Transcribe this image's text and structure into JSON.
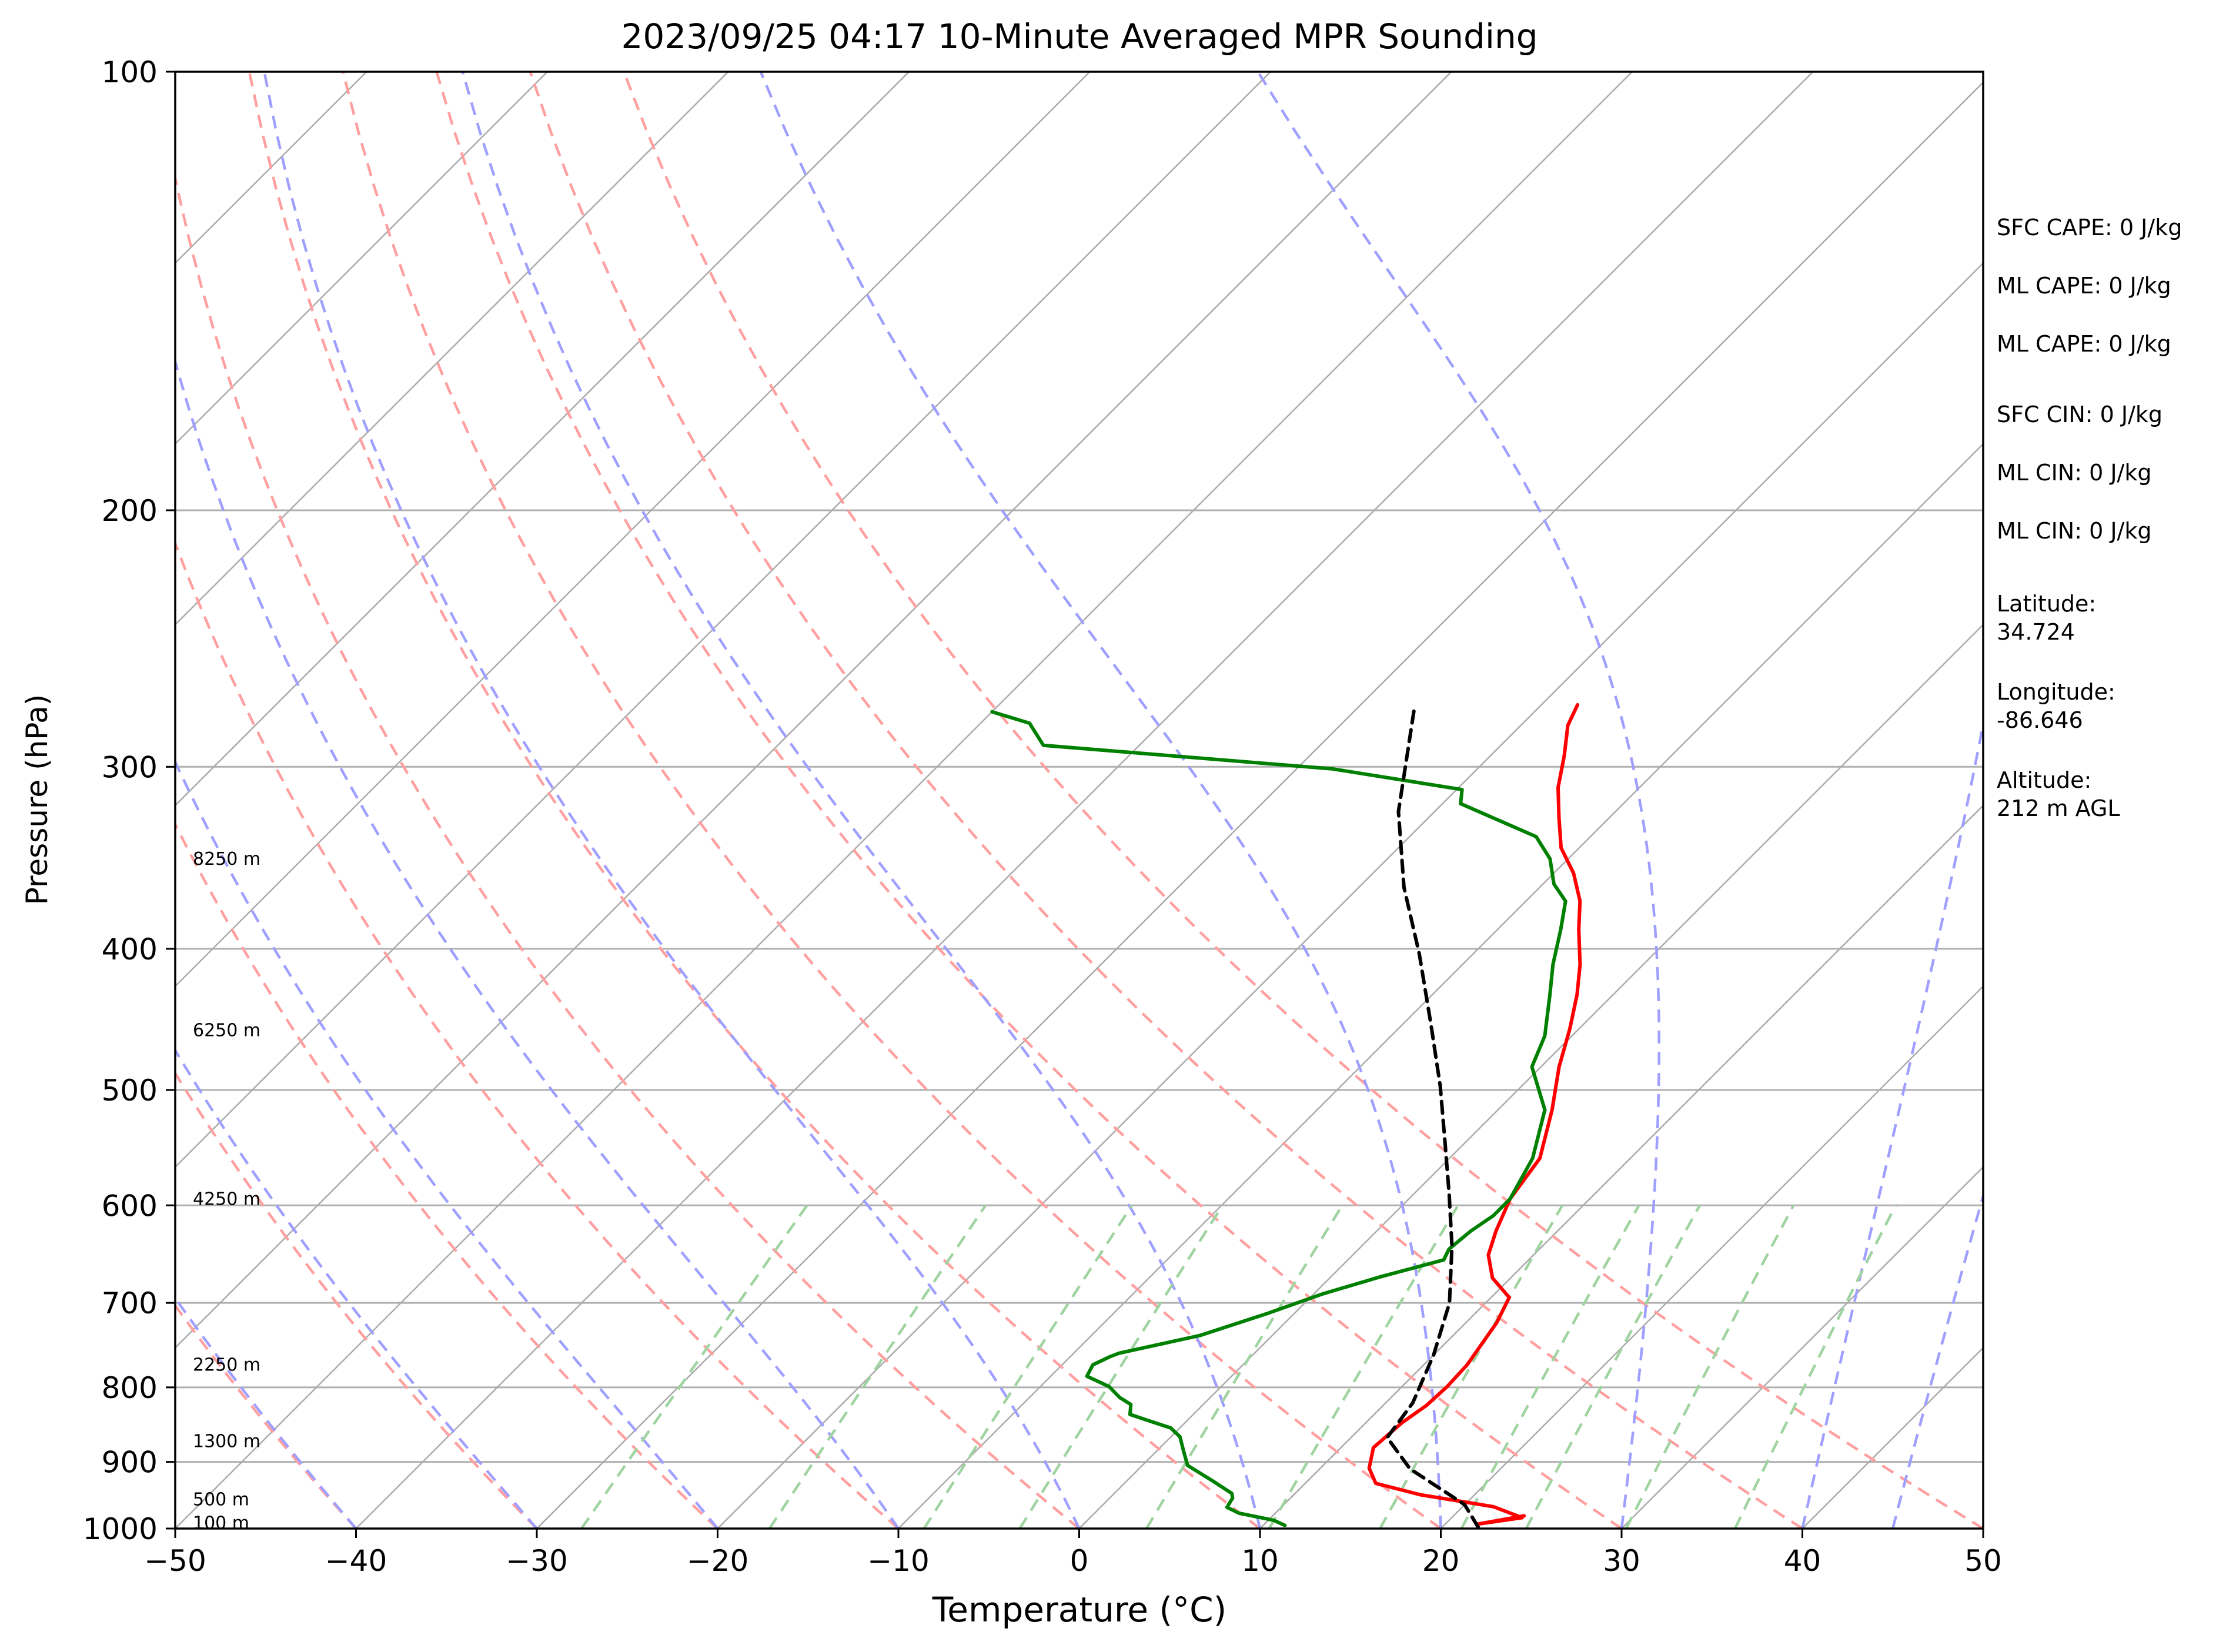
{
  "chart_data": {
    "type": "skew-t",
    "title": "2023/09/25 04:17 10-Minute Averaged MPR Sounding",
    "xlabel": "Temperature (°C)",
    "ylabel": "Pressure (hPa)",
    "xlim": [
      -50,
      50
    ],
    "ylim": [
      1000,
      100
    ],
    "yscale": "log",
    "grid": true,
    "x_ticks": [
      "−50",
      "−40",
      "−30",
      "−20",
      "−10",
      "0",
      "10",
      "20",
      "30",
      "40",
      "50"
    ],
    "x_tick_values": [
      -50,
      -40,
      -30,
      -20,
      -10,
      0,
      10,
      20,
      30,
      40,
      50
    ],
    "y_ticks": [
      "100",
      "200",
      "300",
      "400",
      "500",
      "600",
      "700",
      "800",
      "900",
      "1000"
    ],
    "y_tick_values": [
      100,
      200,
      300,
      400,
      500,
      600,
      700,
      800,
      900,
      1000
    ],
    "height_labels": [
      {
        "text": "8250 m",
        "p": 347
      },
      {
        "text": "6250 m",
        "p": 455
      },
      {
        "text": "4250 m",
        "p": 594
      },
      {
        "text": "2250 m",
        "p": 772
      },
      {
        "text": "1300 m",
        "p": 871
      },
      {
        "text": "500 m",
        "p": 955
      },
      {
        "text": "100 m",
        "p": 991
      }
    ],
    "info_panel": [
      "SFC CAPE: 0 J/kg",
      "ML CAPE: 0 J/kg",
      "ML CAPE: 0 J/kg",
      "SFC CIN: 0 J/kg",
      "ML CIN: 0 J/kg",
      "ML CIN: 0 J/kg",
      "Latitude:",
      "34.724",
      "Longitude:",
      "-86.646",
      "Altitude:",
      "212 m AGL"
    ],
    "colors": {
      "temperature": "#ff0000",
      "dewpoint": "#008000",
      "parcel": "#000000",
      "isotherm": "#aaaaaa",
      "dry_adiabat": "#ff9f9f",
      "moist_adiabat": "#9f9fff",
      "mixing_ratio": "#9fd39f",
      "isobar": "#b0b0b0"
    },
    "isotherms": [
      -120,
      -110,
      -100,
      -90,
      -80,
      -70,
      -60,
      -50,
      -40,
      -30,
      -20,
      -10,
      0,
      10,
      20,
      30,
      40,
      50
    ],
    "dry_adiabat_surface_temps": [
      -100,
      -90,
      -80,
      -70,
      -60,
      -50,
      -40,
      -30,
      -20,
      -10,
      0,
      10,
      20,
      30,
      40,
      50
    ],
    "moist_adiabat_surface_temps": [
      -50,
      -40,
      -30,
      -20,
      -10,
      0,
      10,
      20,
      30,
      40,
      45,
      50
    ],
    "mixing_ratio_gkg": [
      0.4,
      1,
      2,
      3,
      5,
      8,
      12,
      16,
      20,
      28,
      40
    ],
    "series": [
      {
        "role": "temperature",
        "points": [
          [
            23.9,
            980
          ],
          [
            21.8,
            993
          ],
          [
            23.9,
            983
          ],
          [
            21.7,
            966
          ],
          [
            17.0,
            948
          ],
          [
            13.9,
            931
          ],
          [
            12.7,
            909
          ],
          [
            11.8,
            880
          ],
          [
            12.0,
            846
          ],
          [
            12.4,
            823
          ],
          [
            12.5,
            799
          ],
          [
            12.4,
            772
          ],
          [
            12.0,
            743
          ],
          [
            11.7,
            722
          ],
          [
            11.0,
            694
          ],
          [
            9.0,
            673
          ],
          [
            7.5,
            649
          ],
          [
            6.6,
            625
          ],
          [
            5.6,
            594
          ],
          [
            5.0,
            557
          ],
          [
            3.0,
            516
          ],
          [
            1.0,
            482
          ],
          [
            -0.5,
            454
          ],
          [
            -2.0,
            430
          ],
          [
            -3.5,
            410
          ],
          [
            -5.5,
            388
          ],
          [
            -7.0,
            371
          ],
          [
            -8.9,
            355
          ],
          [
            -11.0,
            341
          ],
          [
            -12.8,
            325
          ],
          [
            -14.5,
            310
          ],
          [
            -15.9,
            295
          ],
          [
            -17.4,
            281
          ],
          [
            -18.0,
            272
          ]
        ]
      },
      {
        "role": "dewpoint",
        "points": [
          [
            11.2,
            995
          ],
          [
            10.3,
            987
          ],
          [
            8.0,
            976
          ],
          [
            7.0,
            967
          ],
          [
            6.8,
            953
          ],
          [
            6.5,
            946
          ],
          [
            4.7,
            927
          ],
          [
            2.5,
            905
          ],
          [
            1.5,
            885
          ],
          [
            0.5,
            865
          ],
          [
            -0.5,
            853
          ],
          [
            -2.0,
            844
          ],
          [
            -3.5,
            835
          ],
          [
            -4.0,
            822
          ],
          [
            -5.0,
            813
          ],
          [
            -6.2,
            799
          ],
          [
            -8.0,
            786
          ],
          [
            -8.3,
            772
          ],
          [
            -7.8,
            762
          ],
          [
            -7.5,
            758
          ],
          [
            -4.0,
            737
          ],
          [
            -1.5,
            712
          ],
          [
            0.5,
            690
          ],
          [
            2.7,
            672
          ],
          [
            5.3,
            654
          ],
          [
            5.0,
            643
          ],
          [
            5.2,
            625
          ],
          [
            5.6,
            610
          ],
          [
            5.6,
            594
          ],
          [
            4.6,
            557
          ],
          [
            2.6,
            516
          ],
          [
            -0.5,
            482
          ],
          [
            -1.5,
            459
          ],
          [
            -3.5,
            430
          ],
          [
            -5.0,
            410
          ],
          [
            -6.5,
            388
          ],
          [
            -7.8,
            371
          ],
          [
            -9.4,
            361
          ],
          [
            -11.0,
            347
          ],
          [
            -13.0,
            335
          ],
          [
            -19.0,
            318
          ],
          [
            -19.7,
            311
          ],
          [
            -28.0,
            301
          ],
          [
            -45.3,
            290
          ],
          [
            -47.3,
            280
          ],
          [
            -50.0,
            275
          ]
        ]
      },
      {
        "role": "parcel",
        "points": [
          [
            22.0,
            998
          ],
          [
            20.0,
            963
          ],
          [
            15.0,
            910
          ],
          [
            12.0,
            866
          ],
          [
            11.8,
            847
          ],
          [
            11.5,
            820
          ],
          [
            10.0,
            760
          ],
          [
            8.0,
            700
          ],
          [
            5.0,
            640
          ],
          [
            2.0,
            590
          ],
          [
            -1.0,
            545
          ],
          [
            -4.5,
            497
          ],
          [
            -8.5,
            450
          ],
          [
            -13.0,
            403
          ],
          [
            -17.5,
            363
          ],
          [
            -22.0,
            322
          ],
          [
            -27.0,
            272
          ]
        ]
      }
    ]
  }
}
